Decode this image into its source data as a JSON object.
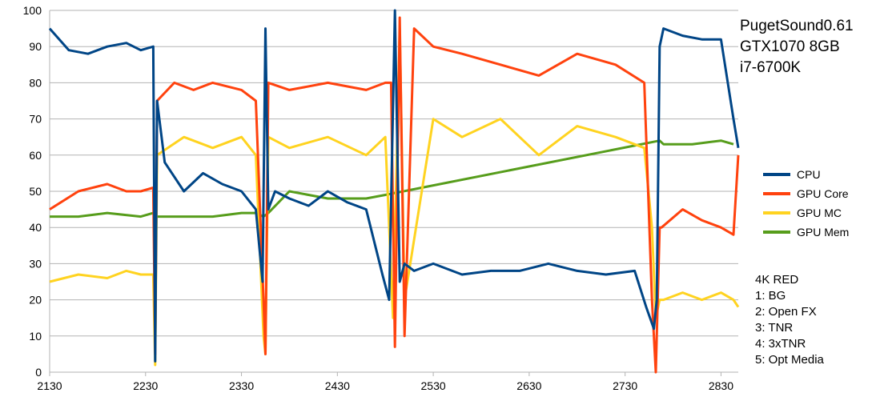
{
  "chart_data": {
    "type": "line",
    "title_lines": [
      "PugetSound0.61",
      "GTX1070 8GB",
      "i7-6700K"
    ],
    "notes": [
      "4K RED",
      "1: BG",
      "2: Open FX",
      "3: TNR",
      "4: 3xTNR",
      "5: Opt Media"
    ],
    "xlim": [
      2130,
      2848
    ],
    "ylim": [
      0,
      100
    ],
    "x_ticks": [
      2130,
      2230,
      2330,
      2430,
      2530,
      2630,
      2730,
      2830
    ],
    "y_ticks": [
      0,
      10,
      20,
      30,
      40,
      50,
      60,
      70,
      80,
      90,
      100
    ],
    "grid": true,
    "legend_position": "right",
    "series": [
      {
        "name": "CPU",
        "color": "#004586",
        "x": [
          2130,
          2150,
          2170,
          2190,
          2210,
          2225,
          2238,
          2240,
          2242,
          2250,
          2270,
          2290,
          2310,
          2330,
          2345,
          2352,
          2355,
          2358,
          2365,
          2380,
          2400,
          2420,
          2440,
          2460,
          2477,
          2484,
          2490,
          2495,
          2500,
          2510,
          2530,
          2560,
          2590,
          2620,
          2650,
          2680,
          2710,
          2740,
          2752,
          2760,
          2763,
          2766,
          2770,
          2790,
          2810,
          2830,
          2843,
          2848
        ],
        "values": [
          95,
          89,
          88,
          90,
          91,
          89,
          90,
          3,
          75,
          58,
          50,
          55,
          52,
          50,
          45,
          25,
          95,
          45,
          50,
          48,
          46,
          50,
          47,
          45,
          27,
          20,
          100,
          25,
          30,
          28,
          30,
          27,
          28,
          28,
          30,
          28,
          27,
          28,
          18,
          12,
          20,
          90,
          95,
          93,
          92,
          92,
          70,
          62
        ]
      },
      {
        "name": "GPU Core",
        "color": "#ff420e",
        "x": [
          2130,
          2160,
          2190,
          2210,
          2225,
          2238,
          2240,
          2242,
          2260,
          2280,
          2300,
          2330,
          2345,
          2353,
          2355,
          2358,
          2380,
          2420,
          2460,
          2480,
          2486,
          2490,
          2495,
          2500,
          2510,
          2530,
          2560,
          2600,
          2640,
          2680,
          2720,
          2750,
          2758,
          2762,
          2766,
          2768,
          2790,
          2810,
          2830,
          2843,
          2848
        ],
        "values": [
          45,
          50,
          52,
          50,
          50,
          51,
          5,
          75,
          80,
          78,
          80,
          78,
          75,
          20,
          5,
          80,
          78,
          80,
          78,
          80,
          80,
          7,
          98,
          10,
          95,
          90,
          88,
          85,
          82,
          88,
          85,
          80,
          20,
          0,
          40,
          40,
          45,
          42,
          40,
          38,
          60
        ]
      },
      {
        "name": "GPU MC",
        "color": "#ffd320",
        "x": [
          2130,
          2160,
          2190,
          2210,
          2225,
          2238,
          2240,
          2242,
          2270,
          2300,
          2330,
          2345,
          2353,
          2355,
          2358,
          2380,
          2420,
          2460,
          2480,
          2488,
          2495,
          2500,
          2530,
          2560,
          2600,
          2640,
          2680,
          2720,
          2750,
          2758,
          2762,
          2766,
          2770,
          2790,
          2810,
          2830,
          2843,
          2848
        ],
        "values": [
          25,
          27,
          26,
          28,
          27,
          27,
          2,
          60,
          65,
          62,
          65,
          60,
          10,
          5,
          65,
          62,
          65,
          60,
          65,
          15,
          95,
          20,
          70,
          65,
          70,
          60,
          68,
          65,
          62,
          40,
          15,
          20,
          20,
          22,
          20,
          22,
          20,
          18
        ]
      },
      {
        "name": "GPU Mem",
        "color": "#579d1c",
        "x": [
          2130,
          2160,
          2190,
          2225,
          2238,
          2242,
          2270,
          2300,
          2330,
          2345,
          2353,
          2358,
          2380,
          2420,
          2460,
          2480,
          2766,
          2770,
          2800,
          2830,
          2843
        ],
        "values": [
          43,
          43,
          44,
          43,
          44,
          43,
          43,
          43,
          44,
          44,
          43,
          44,
          50,
          48,
          48,
          49,
          64,
          63,
          63,
          64,
          63
        ]
      }
    ]
  }
}
